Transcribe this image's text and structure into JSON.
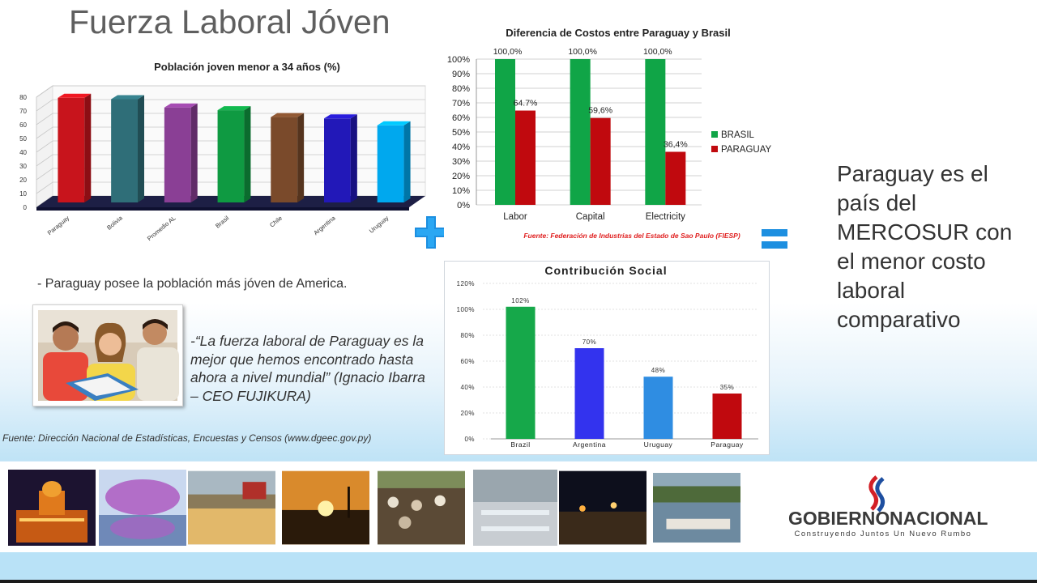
{
  "slide": {
    "title": "Fuerza Laboral Jóven",
    "bullet": "- Paraguay posee la población más jóven de America.",
    "quote": "-“La fuerza laboral de Paraguay es la mejor que hemos encontrado hasta ahora a nivel mundial” (Ignacio Ibarra – CEO FUJIKURA)",
    "source": "Fuente: Dirección Nacional de Estadísticas, Encuestas y Censos (www.dgeec.gov.py)",
    "conclusion": "Paraguay es el país del MERCOSUR con el menor costo laboral comparativo",
    "logo_line1a": "GOBIERNO",
    "logo_line1b": "NACIONAL",
    "logo_line2": "Construyendo Juntos Un Nuevo Rumbo"
  },
  "chart_data": [
    {
      "type": "bar",
      "title": "Población joven menor a 34 años (%)",
      "categories": [
        "Paraguay",
        "Bolivia",
        "Promedio AL",
        "Brasil",
        "Chile",
        "Argentina",
        "Uruguay"
      ],
      "values": [
        76,
        75,
        69,
        67,
        62,
        61,
        56
      ],
      "colors": [
        "#c8141c",
        "#2f6e78",
        "#8a3f95",
        "#0f9a42",
        "#7a4a2b",
        "#2218b8",
        "#00a8ee"
      ],
      "yticks": [
        "0",
        "10",
        "20",
        "30",
        "40",
        "50",
        "60",
        "70",
        "80"
      ],
      "ylim": [
        0,
        80
      ],
      "grid": true,
      "legend": "none"
    },
    {
      "type": "bar",
      "title": "Diferencia de Costos entre Paraguay y Brasil",
      "categories": [
        "Labor",
        "Capital",
        "Electricity"
      ],
      "series": [
        {
          "name": "BRASIL",
          "values": [
            100.0,
            100.0,
            100.0
          ],
          "labels": [
            "100,0%",
            "100,0%",
            "100,0%"
          ],
          "color": "#10a547"
        },
        {
          "name": "PARAGUAY",
          "values": [
            64.7,
            59.6,
            36.4
          ],
          "labels": [
            "64.7%",
            "59,6%",
            "36,4%"
          ],
          "color": "#c0090e"
        }
      ],
      "yticks": [
        "0%",
        "10%",
        "20%",
        "30%",
        "40%",
        "50%",
        "60%",
        "70%",
        "80%",
        "90%",
        "100%"
      ],
      "ylim": [
        0,
        100
      ],
      "grid": true,
      "legend": "right",
      "source": "Fuente: Federación de Industrias del Estado de Sao Paulo (FIESP)"
    },
    {
      "type": "bar",
      "title": "Contribución Social",
      "categories": [
        "Brazil",
        "Argentina",
        "Uruguay",
        "Paraguay"
      ],
      "values": [
        102,
        70,
        48,
        35
      ],
      "labels": [
        "102%",
        "70%",
        "48%",
        "35%"
      ],
      "colors": [
        "#16a84a",
        "#3333ee",
        "#2f8de2",
        "#c0090e"
      ],
      "yticks": [
        "0%",
        "20%",
        "40%",
        "60%",
        "80%",
        "100%",
        "120%"
      ],
      "ylim": [
        0,
        120
      ],
      "grid": true,
      "legend": "none"
    }
  ],
  "symbols": {
    "plus": "plus-sign",
    "equals": "equals-sign",
    "color": "#1d8fe0"
  }
}
